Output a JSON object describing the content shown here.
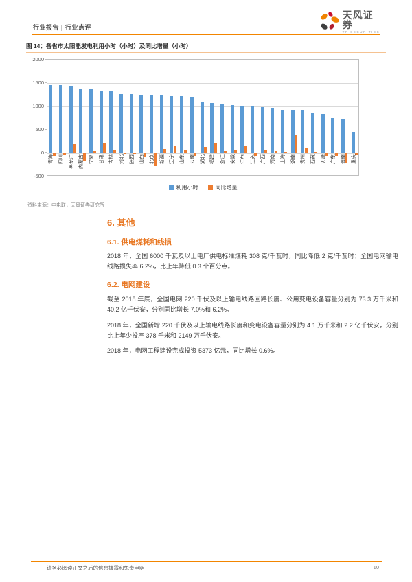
{
  "header": {
    "left": "行业报告 | 行业点评",
    "brand": "天风证券",
    "brand_sub": "TF SECURITIES"
  },
  "figure": {
    "caption": "图 14：各省市太阳能发电利用小时（小时）及同比增量（小时）",
    "source": "资料来源：中电联，天风证券研究所"
  },
  "chart_data": {
    "type": "bar",
    "categories": [
      "青海",
      "四川",
      "黑龙江",
      "内蒙古",
      "宁夏",
      "甘肃",
      "吉林",
      "河北",
      "陕西",
      "山西",
      "北京",
      "新疆",
      "辽宁",
      "山东",
      "云南",
      "湖北",
      "福建",
      "浙江",
      "安徽",
      "江西",
      "江苏",
      "广西",
      "河南",
      "上海",
      "湖南",
      "贵州",
      "西藏",
      "天津",
      "广东",
      "海南",
      "重庆"
    ],
    "series": [
      {
        "name": "利用小时",
        "color": "#5B9BD5",
        "values": [
          1455,
          1450,
          1440,
          1380,
          1375,
          1330,
          1325,
          1270,
          1265,
          1255,
          1250,
          1235,
          1225,
          1220,
          1210,
          1100,
          1080,
          1055,
          1035,
          1020,
          1010,
          985,
          975,
          930,
          915,
          910,
          875,
          845,
          745,
          730,
          450
        ]
      },
      {
        "name": "同比增量",
        "color": "#ED7D31",
        "values": [
          -70,
          -40,
          190,
          -165,
          50,
          210,
          80,
          -20,
          -10,
          -90,
          -285,
          85,
          160,
          75,
          -60,
          130,
          220,
          50,
          75,
          140,
          -65,
          80,
          45,
          35,
          400,
          115,
          10,
          -75,
          -70,
          -215,
          -45
        ]
      }
    ],
    "ylim": [
      -500,
      2000
    ],
    "yticks": [
      2000,
      1500,
      1000,
      500,
      0,
      -500
    ],
    "grid": true,
    "legend_position": "bottom",
    "title": "各省市太阳能发电利用小时（小时）及同比增量（小时）",
    "xlabel": "",
    "ylabel": ""
  },
  "sections": {
    "h1": "6. 其他",
    "h2a": "6.1. 供电煤耗和线损",
    "p1": "2018 年，全国 6000 千瓦及以上电厂供电标准煤耗 308 克/千瓦时，同比降低 2 克/千瓦时；全国电网输电线路损失率 6.2%，比上年降低 0.3 个百分点。",
    "h2b": "6.2. 电网建设",
    "p2": "截至 2018 年底，全国电网 220 千伏及以上输电线路回路长度、公用变电设备容量分别为 73.3 万千米和 40.2 亿千伏安，分别同比增长 7.0%和 6.2%。",
    "p3": "2018 年，全国新增 220 千伏及以上输电线路长度和变电设备容量分别为 4.1 万千米和 2.2 亿千伏安，分别比上年少投产 378 千米和 2149 万千伏安。",
    "p4": "2018 年，电网工程建设完成投资 5373 亿元，同比增长 0.6%。"
  },
  "footer": {
    "disclaimer": "请务必阅读正文之后的信息披露和免责申明",
    "page_number": "10"
  },
  "colors": {
    "accent": "#E87722",
    "rule_orange": "#F28500",
    "rule_light": "#F5C291",
    "bar_blue": "#5B9BD5",
    "bar_orange": "#ED7D31"
  }
}
